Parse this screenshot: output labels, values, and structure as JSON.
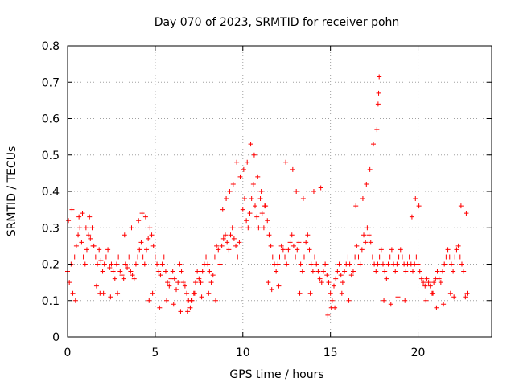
{
  "chart_data": {
    "type": "scatter",
    "title": "Day 070 of 2023, SRMTID for receiver pohn",
    "xlabel": "GPS time / hours",
    "ylabel": "SRMTID / TECUs",
    "xlim": [
      0,
      24.2
    ],
    "ylim": [
      0,
      0.8
    ],
    "x_ticks": [
      0,
      5,
      10,
      15,
      20
    ],
    "y_ticks": [
      0,
      0.1,
      0.2,
      0.3,
      0.4,
      0.5,
      0.6,
      0.7,
      0.8
    ],
    "x_tick_labels": [
      "0",
      "5",
      "10",
      "15",
      "20"
    ],
    "y_tick_labels": [
      "0",
      "0.1",
      "0.2",
      "0.3",
      "0.4",
      "0.5",
      "0.6",
      "0.7",
      "0.8"
    ],
    "grid": true,
    "marker": "plus",
    "color": "#ff0000",
    "series": [
      {
        "name": "SRMTID",
        "x": [
          0.0,
          0.1,
          0.2,
          0.3,
          0.4,
          0.5,
          0.6,
          0.7,
          0.8,
          0.9,
          1.0,
          1.1,
          1.2,
          1.3,
          1.4,
          1.5,
          1.6,
          1.7,
          1.8,
          1.9,
          2.0,
          2.1,
          2.2,
          2.3,
          2.4,
          2.5,
          2.6,
          2.7,
          2.8,
          2.9,
          3.0,
          3.1,
          3.2,
          3.3,
          3.4,
          3.5,
          3.6,
          3.7,
          3.8,
          3.9,
          4.0,
          4.1,
          4.2,
          4.3,
          4.4,
          4.5,
          4.6,
          4.7,
          4.8,
          4.9,
          5.0,
          5.1,
          5.2,
          5.3,
          5.4,
          5.5,
          5.6,
          5.7,
          5.8,
          5.9,
          6.0,
          6.1,
          6.2,
          6.3,
          6.4,
          6.5,
          6.6,
          6.7,
          6.8,
          6.9,
          7.0,
          7.1,
          7.2,
          7.3,
          7.4,
          7.5,
          7.6,
          7.7,
          7.8,
          7.9,
          8.0,
          8.1,
          8.2,
          8.3,
          8.4,
          8.5,
          8.6,
          8.7,
          8.8,
          8.9,
          9.0,
          9.1,
          9.2,
          9.3,
          9.4,
          9.5,
          9.6,
          9.7,
          9.8,
          9.9,
          10.0,
          10.1,
          10.2,
          10.3,
          10.4,
          10.5,
          10.6,
          10.7,
          10.8,
          10.9,
          11.0,
          11.1,
          11.2,
          11.3,
          11.4,
          11.5,
          11.6,
          11.7,
          11.8,
          11.9,
          12.0,
          12.1,
          12.2,
          12.3,
          12.4,
          12.5,
          12.6,
          12.7,
          12.8,
          12.9,
          13.0,
          13.1,
          13.2,
          13.3,
          13.4,
          13.5,
          13.6,
          13.7,
          13.8,
          13.9,
          14.0,
          14.1,
          14.2,
          14.3,
          14.4,
          14.5,
          14.6,
          14.7,
          14.8,
          14.9,
          15.0,
          15.1,
          15.2,
          15.3,
          15.4,
          15.5,
          15.6,
          15.7,
          15.8,
          15.9,
          16.0,
          16.1,
          16.2,
          16.3,
          16.4,
          16.5,
          16.6,
          16.7,
          16.8,
          16.9,
          17.0,
          17.1,
          17.2,
          17.3,
          17.4,
          17.5,
          17.6,
          17.7,
          17.8,
          17.9,
          18.0,
          18.1,
          18.2,
          18.3,
          18.4,
          18.5,
          18.6,
          18.7,
          18.8,
          18.9,
          19.0,
          19.1,
          19.2,
          19.3,
          19.4,
          19.5,
          19.6,
          19.7,
          19.8,
          19.9,
          20.0,
          20.1,
          20.2,
          20.3,
          20.4,
          20.5,
          20.6,
          20.7,
          20.8,
          20.9,
          21.0,
          21.1,
          21.2,
          21.3,
          21.4,
          21.5,
          21.6,
          21.7,
          21.8,
          21.9,
          22.0,
          22.1,
          22.2,
          22.3,
          22.4,
          22.5,
          22.6,
          22.7,
          22.8,
          0.05,
          0.25,
          0.45,
          0.65,
          0.85,
          1.05,
          1.25,
          1.45,
          1.65,
          1.85,
          2.05,
          2.45,
          2.85,
          3.25,
          3.65,
          4.05,
          4.25,
          4.45,
          4.65,
          4.85,
          5.25,
          5.65,
          6.05,
          6.45,
          6.85,
          7.05,
          7.25,
          7.65,
          8.05,
          8.45,
          8.85,
          9.05,
          9.25,
          9.45,
          9.65,
          9.85,
          10.05,
          10.25,
          10.45,
          10.65,
          10.85,
          11.05,
          11.25,
          11.45,
          11.65,
          12.05,
          12.45,
          12.85,
          13.05,
          13.25,
          13.45,
          13.85,
          14.05,
          14.45,
          14.85,
          15.05,
          15.25,
          15.65,
          16.05,
          16.45,
          16.85,
          17.05,
          17.25,
          17.45,
          17.65,
          17.72,
          17.75,
          17.78,
          18.05,
          18.45,
          18.85,
          19.25,
          19.65,
          19.85,
          20.05,
          20.45,
          20.85,
          21.05,
          21.45,
          21.85,
          22.05,
          22.45,
          22.75
        ],
        "y": [
          0.18,
          0.15,
          0.2,
          0.12,
          0.22,
          0.25,
          0.28,
          0.3,
          0.26,
          0.22,
          0.2,
          0.24,
          0.28,
          0.27,
          0.3,
          0.25,
          0.22,
          0.2,
          0.24,
          0.21,
          0.18,
          0.2,
          0.22,
          0.24,
          0.19,
          0.2,
          0.18,
          0.16,
          0.2,
          0.22,
          0.18,
          0.17,
          0.16,
          0.2,
          0.19,
          0.22,
          0.18,
          0.17,
          0.16,
          0.2,
          0.22,
          0.24,
          0.26,
          0.22,
          0.2,
          0.24,
          0.27,
          0.3,
          0.28,
          0.25,
          0.22,
          0.2,
          0.18,
          0.17,
          0.2,
          0.22,
          0.18,
          0.15,
          0.14,
          0.16,
          0.18,
          0.16,
          0.13,
          0.15,
          0.2,
          0.18,
          0.15,
          0.14,
          0.12,
          0.1,
          0.08,
          0.1,
          0.12,
          0.15,
          0.18,
          0.16,
          0.15,
          0.18,
          0.2,
          0.22,
          0.2,
          0.18,
          0.15,
          0.17,
          0.22,
          0.25,
          0.24,
          0.2,
          0.25,
          0.27,
          0.28,
          0.26,
          0.24,
          0.28,
          0.3,
          0.27,
          0.25,
          0.22,
          0.26,
          0.3,
          0.35,
          0.38,
          0.32,
          0.3,
          0.34,
          0.38,
          0.42,
          0.36,
          0.33,
          0.3,
          0.38,
          0.34,
          0.3,
          0.36,
          0.32,
          0.28,
          0.25,
          0.22,
          0.2,
          0.18,
          0.2,
          0.22,
          0.25,
          0.24,
          0.22,
          0.2,
          0.24,
          0.26,
          0.28,
          0.25,
          0.22,
          0.24,
          0.26,
          0.2,
          0.18,
          0.22,
          0.26,
          0.28,
          0.24,
          0.2,
          0.18,
          0.22,
          0.2,
          0.18,
          0.16,
          0.15,
          0.18,
          0.2,
          0.17,
          0.15,
          0.12,
          0.1,
          0.14,
          0.16,
          0.18,
          0.2,
          0.17,
          0.15,
          0.18,
          0.2,
          0.22,
          0.2,
          0.17,
          0.18,
          0.22,
          0.25,
          0.22,
          0.2,
          0.24,
          0.28,
          0.26,
          0.3,
          0.28,
          0.26,
          0.22,
          0.2,
          0.18,
          0.2,
          0.22,
          0.24,
          0.2,
          0.18,
          0.16,
          0.2,
          0.22,
          0.24,
          0.2,
          0.18,
          0.2,
          0.22,
          0.24,
          0.22,
          0.2,
          0.18,
          0.2,
          0.22,
          0.2,
          0.18,
          0.2,
          0.22,
          0.2,
          0.18,
          0.16,
          0.15,
          0.14,
          0.16,
          0.15,
          0.14,
          0.12,
          0.15,
          0.16,
          0.18,
          0.16,
          0.15,
          0.18,
          0.2,
          0.22,
          0.24,
          0.22,
          0.2,
          0.18,
          0.22,
          0.24,
          0.25,
          0.22,
          0.2,
          0.18,
          0.11,
          0.12,
          0.32,
          0.35,
          0.1,
          0.33,
          0.34,
          0.3,
          0.33,
          0.25,
          0.14,
          0.12,
          0.12,
          0.11,
          0.12,
          0.28,
          0.3,
          0.32,
          0.34,
          0.33,
          0.1,
          0.12,
          0.08,
          0.1,
          0.09,
          0.07,
          0.07,
          0.1,
          0.12,
          0.11,
          0.12,
          0.1,
          0.35,
          0.38,
          0.4,
          0.42,
          0.48,
          0.44,
          0.46,
          0.48,
          0.53,
          0.5,
          0.44,
          0.4,
          0.36,
          0.15,
          0.13,
          0.14,
          0.48,
          0.46,
          0.4,
          0.12,
          0.38,
          0.12,
          0.4,
          0.41,
          0.06,
          0.08,
          0.08,
          0.12,
          0.1,
          0.36,
          0.38,
          0.42,
          0.46,
          0.53,
          0.57,
          0.64,
          0.67,
          0.715,
          0.1,
          0.09,
          0.11,
          0.1,
          0.33,
          0.38,
          0.36,
          0.1,
          0.12,
          0.08,
          0.09,
          0.12,
          0.11,
          0.36,
          0.34
        ]
      }
    ]
  }
}
